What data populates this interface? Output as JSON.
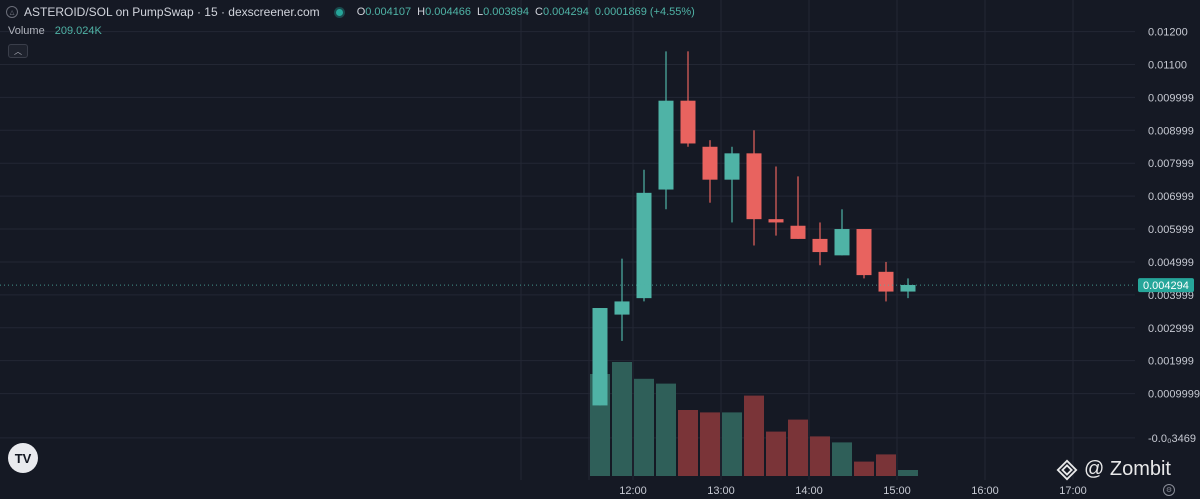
{
  "header": {
    "title": "ASTEROID/SOL on PumpSwap · 15 · dexscreener.com",
    "ohlc": [
      {
        "k": "O",
        "v": "0.004107"
      },
      {
        "k": "H",
        "v": "0.004466"
      },
      {
        "k": "L",
        "v": "0.003894"
      },
      {
        "k": "C",
        "v": "0.004294"
      },
      {
        "k": "",
        "v": "0.0001869 (+4.55%)"
      }
    ],
    "volume_label": "Volume",
    "volume_value": "209.024K"
  },
  "colors": {
    "background": "#151924",
    "grid": "#232734",
    "up": "#4fb3a6",
    "down": "#e8635f",
    "vol_up": "#2f5f59",
    "vol_down": "#7a3438",
    "axis_text": "#c7cad3",
    "price_label_bg": "#26a69a"
  },
  "logo_text": "TV",
  "watermark_text": "@ Zombit",
  "chart_data": {
    "type": "candlestick",
    "y_axis": {
      "min": -0.00035,
      "max": 0.0122,
      "ticks": [
        0.012,
        0.011,
        0.01,
        0.009,
        0.008,
        0.007,
        0.006,
        0.005,
        0.004,
        0.003,
        0.002,
        0.001,
        -0.0003469
      ],
      "tick_labels": [
        "0.01200",
        "0.01100",
        "0.009999",
        "0.008999",
        "0.007999",
        "0.006999",
        "0.005999",
        "0.004999",
        "0.003999",
        "0.002999",
        "0.001999",
        "0.0009999",
        "-0.0₀3469"
      ]
    },
    "x_axis": {
      "labels": [
        "12:00",
        "13:00",
        "14:00",
        "15:00",
        "16:00",
        "17:00"
      ],
      "label_candle_index": [
        1.5,
        5.5,
        9.5,
        13.5,
        17.5,
        21.5
      ]
    },
    "current_price": 0.004294,
    "current_price_label": "0.004294",
    "volume_max": 100,
    "candles": [
      {
        "o": 0.00064,
        "h": 0.0036,
        "l": 0.00064,
        "c": 0.0036,
        "v": 85
      },
      {
        "o": 0.0034,
        "h": 0.0051,
        "l": 0.0026,
        "c": 0.0038,
        "v": 95
      },
      {
        "o": 0.0039,
        "h": 0.0078,
        "l": 0.0038,
        "c": 0.0071,
        "v": 81
      },
      {
        "o": 0.0072,
        "h": 0.0114,
        "l": 0.0066,
        "c": 0.0099,
        "v": 77
      },
      {
        "o": 0.0099,
        "h": 0.0114,
        "l": 0.0085,
        "c": 0.0086,
        "v": 55
      },
      {
        "o": 0.0085,
        "h": 0.0087,
        "l": 0.0068,
        "c": 0.0075,
        "v": 53
      },
      {
        "o": 0.0075,
        "h": 0.0085,
        "l": 0.0062,
        "c": 0.0083,
        "v": 53
      },
      {
        "o": 0.0083,
        "h": 0.009,
        "l": 0.0055,
        "c": 0.0063,
        "v": 67
      },
      {
        "o": 0.0063,
        "h": 0.0079,
        "l": 0.0058,
        "c": 0.0062,
        "v": 37
      },
      {
        "o": 0.0061,
        "h": 0.0076,
        "l": 0.0057,
        "c": 0.0057,
        "v": 47
      },
      {
        "o": 0.0057,
        "h": 0.0062,
        "l": 0.0049,
        "c": 0.0053,
        "v": 33
      },
      {
        "o": 0.0052,
        "h": 0.0066,
        "l": 0.0052,
        "c": 0.006,
        "v": 28
      },
      {
        "o": 0.006,
        "h": 0.006,
        "l": 0.0045,
        "c": 0.0046,
        "v": 12
      },
      {
        "o": 0.0047,
        "h": 0.005,
        "l": 0.0038,
        "c": 0.0041,
        "v": 18
      },
      {
        "o": 0.0041,
        "h": 0.0045,
        "l": 0.0039,
        "c": 0.0043,
        "v": 5
      }
    ]
  }
}
